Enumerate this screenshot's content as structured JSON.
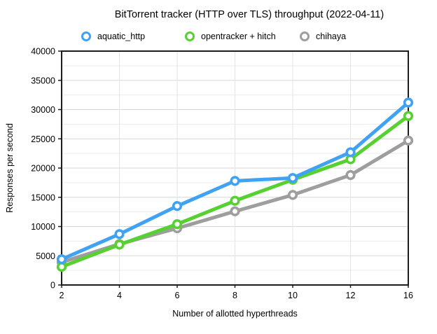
{
  "title": "BitTorrent tracker (HTTP over TLS) throughput (2022-04-11)",
  "chart_data": {
    "type": "line",
    "title": "BitTorrent tracker (HTTP over TLS) throughput (2022-04-11)",
    "xlabel": "Number of allotted hyperthreads",
    "ylabel": "Responses per second",
    "categories": [
      "2",
      "4",
      "6",
      "8",
      "10",
      "12",
      "16"
    ],
    "ylim": [
      0,
      40000
    ],
    "y_major_step": 5000,
    "y_minor_step": 2500,
    "grid": true,
    "legend_position": "top",
    "marker_style": "open-circle",
    "series": [
      {
        "name": "aquatic_http",
        "color": "#3FA2F3",
        "values": [
          4400,
          8700,
          13500,
          17800,
          18300,
          22700,
          31200
        ]
      },
      {
        "name": "opentracker + hitch",
        "color": "#57D131",
        "values": [
          3100,
          6900,
          10400,
          14400,
          18000,
          21500,
          28900
        ]
      },
      {
        "name": "chihaya",
        "color": "#9E9E9E",
        "values": [
          3900,
          7000,
          9700,
          12600,
          15400,
          18800,
          24700
        ]
      }
    ]
  },
  "colors": {
    "background": "#ffffff",
    "frame": "#1c1c1c",
    "grid_major": "#d7d7d7",
    "grid_minor": "#ececec",
    "grid_vertical": "#e3e3e3",
    "text": "#000000"
  },
  "legend_items": [
    {
      "label": "aquatic_http"
    },
    {
      "label": "opentracker + hitch"
    },
    {
      "label": "chihaya"
    }
  ]
}
